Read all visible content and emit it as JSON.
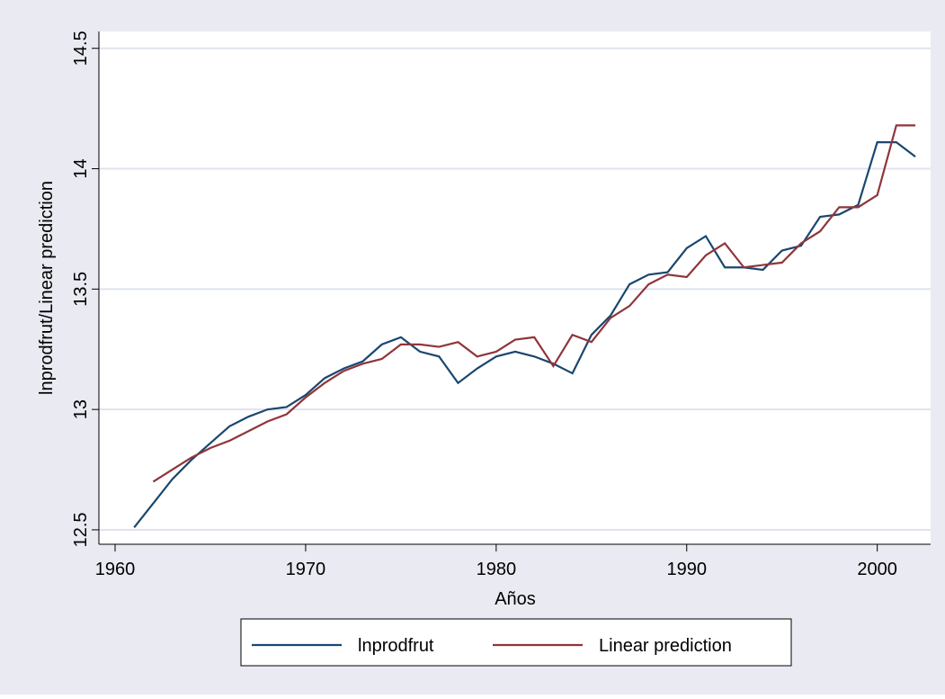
{
  "chart_data": {
    "type": "line",
    "x_label": "Años",
    "y_label": "lnprodfrut/Linear prediction",
    "x": [
      1961,
      1962,
      1963,
      1964,
      1965,
      1966,
      1967,
      1968,
      1969,
      1970,
      1971,
      1972,
      1973,
      1974,
      1975,
      1976,
      1977,
      1978,
      1979,
      1980,
      1981,
      1982,
      1983,
      1984,
      1985,
      1986,
      1987,
      1988,
      1989,
      1990,
      1991,
      1992,
      1993,
      1994,
      1995,
      1996,
      1997,
      1998,
      1999,
      2000,
      2001,
      2002
    ],
    "series": [
      {
        "name": "lnprodfrut",
        "color": "#1a476f",
        "values": [
          12.51,
          12.61,
          12.71,
          12.79,
          12.86,
          12.93,
          12.97,
          13.0,
          13.01,
          13.06,
          13.13,
          13.17,
          13.2,
          13.27,
          13.3,
          13.24,
          13.22,
          13.11,
          13.17,
          13.22,
          13.24,
          13.22,
          13.19,
          13.15,
          13.31,
          13.39,
          13.52,
          13.56,
          13.57,
          13.67,
          13.72,
          13.59,
          13.59,
          13.58,
          13.66,
          13.68,
          13.8,
          13.81,
          13.85,
          14.11,
          14.11,
          14.05
        ]
      },
      {
        "name": "Linear prediction",
        "color": "#90353b",
        "values": [
          null,
          12.7,
          12.75,
          12.8,
          12.84,
          12.87,
          12.91,
          12.95,
          12.98,
          13.05,
          13.11,
          13.16,
          13.19,
          13.21,
          13.27,
          13.27,
          13.26,
          13.28,
          13.22,
          13.24,
          13.29,
          13.3,
          13.18,
          13.31,
          13.28,
          13.38,
          13.43,
          13.52,
          13.56,
          13.55,
          13.64,
          13.69,
          13.59,
          13.6,
          13.61,
          13.69,
          13.74,
          13.84,
          13.84,
          13.89,
          14.18,
          14.18
        ]
      }
    ],
    "xlim": [
      1959.15,
      2002.8
    ],
    "xticks": [
      1960,
      1970,
      1980,
      1990,
      2000
    ],
    "ylim": [
      12.44,
      14.57
    ],
    "yticks": [
      12.5,
      13,
      13.5,
      14,
      14.5
    ],
    "grid": true
  }
}
